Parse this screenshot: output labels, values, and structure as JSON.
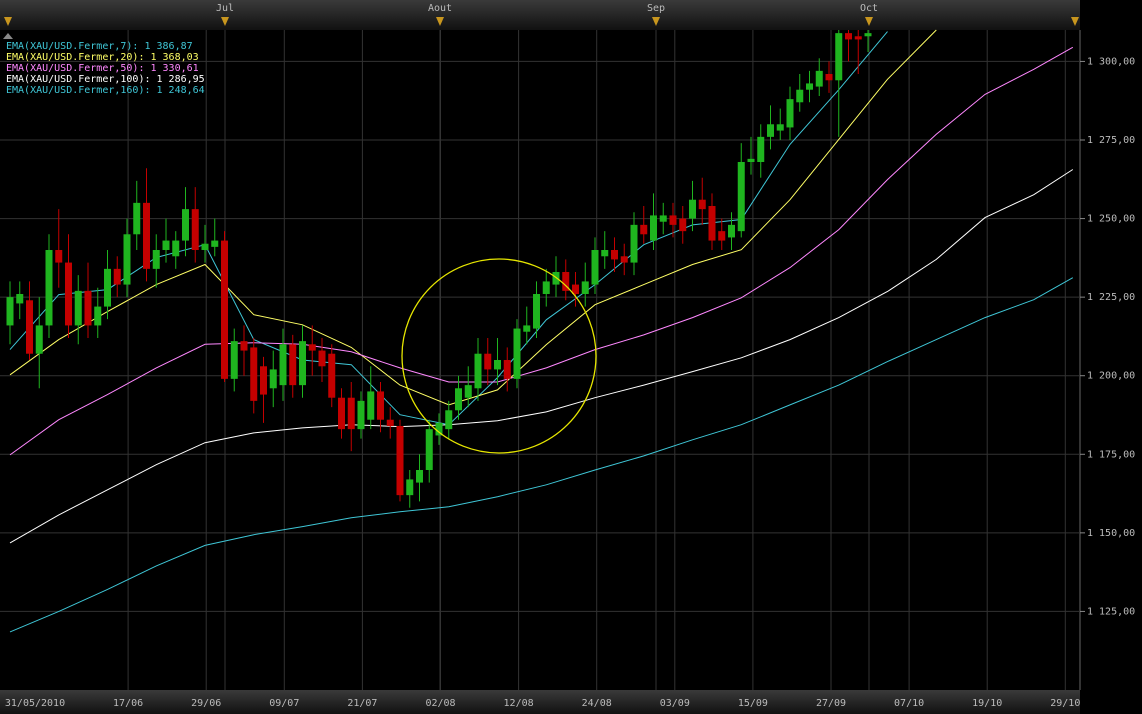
{
  "chart_data": {
    "type": "candlestick",
    "legend": [
      {
        "label": "EMA(XAU/USD.Fermer,7): 1 386,87",
        "color": "#3fc6d6"
      },
      {
        "label": "EMA(XAU/USD.Fermer,20): 1 368,03",
        "color": "#ffff66"
      },
      {
        "label": "EMA(XAU/USD.Fermer,50): 1 330,61",
        "color": "#ff88ff"
      },
      {
        "label": "EMA(XAU/USD.Fermer,100): 1 286,95",
        "color": "#ffffff"
      },
      {
        "label": "EMA(XAU/USD.Fermer,160): 1 248,64",
        "color": "#3fc6d6"
      }
    ],
    "months": [
      "Jul",
      "Aout",
      "Sep",
      "Oct"
    ],
    "categories": [
      "31/05/2010",
      "17/06",
      "29/06",
      "09/07",
      "21/07",
      "02/08",
      "12/08",
      "24/08",
      "03/09",
      "15/09",
      "27/09",
      "07/10",
      "19/10",
      "29/10"
    ],
    "ylim": [
      1100,
      1310
    ],
    "yticks": [
      {
        "value": 1125,
        "label": "1 125,00"
      },
      {
        "value": 1150,
        "label": "1 150,00"
      },
      {
        "value": 1175,
        "label": "1 175,00"
      },
      {
        "value": 1200,
        "label": "1 200,00"
      },
      {
        "value": 1225,
        "label": "1 225,00"
      },
      {
        "value": 1250,
        "label": "1 250,00"
      },
      {
        "value": 1275,
        "label": "1 275,00"
      },
      {
        "value": 1300,
        "label": "1 300,00"
      }
    ],
    "grid": true,
    "up_color": "#1fb51f",
    "down_color": "#c40000",
    "open": [
      1216,
      1223,
      1224,
      1207,
      1216,
      1240,
      1236,
      1216,
      1227,
      1216,
      1222,
      1234,
      1229,
      1245,
      1255,
      1234,
      1240,
      1238,
      1243,
      1253,
      1240,
      1241,
      1243,
      1199,
      1211,
      1209,
      1203,
      1196,
      1197,
      1210,
      1197,
      1210,
      1208,
      1207,
      1193,
      1193,
      1183,
      1186,
      1195,
      1186,
      1184,
      1162,
      1166,
      1170,
      1181,
      1183,
      1189,
      1193,
      1196,
      1207,
      1202,
      1205,
      1199,
      1214,
      1215,
      1226,
      1229,
      1233,
      1229,
      1226,
      1229,
      1238,
      1240,
      1238,
      1236,
      1248,
      1243,
      1249,
      1251,
      1250,
      1250,
      1256,
      1254,
      1246,
      1244,
      1246,
      1268,
      1268,
      1276,
      1278,
      1279,
      1287,
      1291,
      1292,
      1296,
      1294,
      1309,
      1308,
      1308
    ],
    "high": [
      1230,
      1230,
      1230,
      1225,
      1245,
      1253,
      1245,
      1232,
      1236,
      1228,
      1240,
      1238,
      1250,
      1262,
      1266,
      1245,
      1250,
      1246,
      1260,
      1260,
      1248,
      1250,
      1246,
      1215,
      1216,
      1212,
      1206,
      1208,
      1215,
      1213,
      1216,
      1216,
      1212,
      1210,
      1196,
      1198,
      1195,
      1203,
      1198,
      1190,
      1186,
      1170,
      1175,
      1186,
      1188,
      1192,
      1200,
      1203,
      1212,
      1212,
      1212,
      1209,
      1218,
      1222,
      1230,
      1234,
      1238,
      1237,
      1233,
      1236,
      1244,
      1246,
      1244,
      1242,
      1252,
      1254,
      1258,
      1255,
      1255,
      1254,
      1262,
      1263,
      1258,
      1250,
      1252,
      1274,
      1276,
      1280,
      1286,
      1285,
      1292,
      1296,
      1297,
      1301,
      1300,
      1310,
      1310,
      1310,
      1310
    ],
    "low": [
      1210,
      1218,
      1205,
      1196,
      1212,
      1228,
      1212,
      1210,
      1212,
      1212,
      1218,
      1225,
      1225,
      1240,
      1230,
      1228,
      1236,
      1234,
      1238,
      1236,
      1236,
      1238,
      1198,
      1195,
      1200,
      1188,
      1185,
      1190,
      1192,
      1193,
      1193,
      1200,
      1198,
      1190,
      1180,
      1176,
      1180,
      1183,
      1182,
      1180,
      1160,
      1158,
      1160,
      1166,
      1178,
      1180,
      1186,
      1190,
      1192,
      1197,
      1197,
      1195,
      1196,
      1210,
      1212,
      1222,
      1225,
      1224,
      1222,
      1222,
      1226,
      1234,
      1233,
      1232,
      1232,
      1242,
      1240,
      1245,
      1244,
      1242,
      1246,
      1248,
      1240,
      1240,
      1240,
      1244,
      1264,
      1263,
      1272,
      1275,
      1275,
      1284,
      1287,
      1289,
      1290,
      1276,
      1300,
      1296,
      1303
    ],
    "close": [
      1225,
      1226,
      1207,
      1216,
      1240,
      1236,
      1216,
      1227,
      1216,
      1222,
      1234,
      1229,
      1245,
      1255,
      1234,
      1240,
      1243,
      1243,
      1253,
      1240,
      1242,
      1243,
      1199,
      1211,
      1208,
      1192,
      1194,
      1202,
      1210,
      1197,
      1211,
      1208,
      1203,
      1193,
      1183,
      1183,
      1192,
      1195,
      1186,
      1184,
      1162,
      1167,
      1170,
      1183,
      1185,
      1189,
      1196,
      1197,
      1207,
      1202,
      1205,
      1199,
      1215,
      1216,
      1226,
      1230,
      1233,
      1227,
      1226,
      1230,
      1240,
      1240,
      1237,
      1236,
      1248,
      1245,
      1251,
      1251,
      1248,
      1246,
      1256,
      1253,
      1243,
      1243,
      1248,
      1268,
      1269,
      1276,
      1280,
      1280,
      1288,
      1291,
      1293,
      1297,
      1294,
      1309,
      1307,
      1307,
      1309
    ],
    "series": [
      {
        "name": "EMA 7",
        "color": "#3fc6d6",
        "x": [
          0,
          5,
          10,
          15,
          20,
          25,
          30,
          35,
          40,
          45,
          50,
          55,
          60,
          65,
          70,
          75,
          80,
          85,
          90
        ],
        "values": [
          1208.3,
          1225.8,
          1227.4,
          1237.6,
          1241.7,
          1211.5,
          1205,
          1203.5,
          1187.6,
          1184.4,
          1199.4,
          1217.8,
          1229,
          1241.7,
          1248,
          1249.7,
          1273.6,
          1291,
          1309.5
        ]
      },
      {
        "name": "EMA 20",
        "color": "#ffff66",
        "x": [
          0,
          5,
          10,
          15,
          20,
          25,
          30,
          35,
          40,
          45,
          50,
          55,
          60,
          65,
          70,
          75,
          80,
          85,
          90,
          95
        ],
        "values": [
          1200.3,
          1211.5,
          1220.4,
          1229,
          1235.4,
          1219.4,
          1216.2,
          1209,
          1197,
          1190.7,
          1195.5,
          1209.9,
          1222.6,
          1229,
          1235.4,
          1240.1,
          1256,
          1275.2,
          1294.3,
          1310
        ]
      },
      {
        "name": "EMA 50",
        "color": "#ff88ff",
        "x": [
          0,
          5,
          10,
          15,
          20,
          25,
          30,
          35,
          40,
          45,
          50,
          55,
          60,
          65,
          70,
          75,
          80,
          85,
          90,
          95,
          100,
          105,
          109
        ],
        "values": [
          1174.8,
          1186,
          1194,
          1202.5,
          1210,
          1210.5,
          1210,
          1207.6,
          1202.5,
          1198,
          1198,
          1202.5,
          1208.3,
          1213,
          1218.5,
          1224.8,
          1234.4,
          1246.5,
          1262.4,
          1276.8,
          1289.5,
          1297.5,
          1304.5
        ]
      },
      {
        "name": "EMA 100",
        "color": "#ffffff",
        "x": [
          0,
          5,
          10,
          15,
          20,
          25,
          30,
          35,
          40,
          45,
          50,
          55,
          60,
          65,
          70,
          75,
          80,
          85,
          90,
          95,
          100,
          105,
          109
        ],
        "values": [
          1146.8,
          1155.7,
          1163.7,
          1171.7,
          1178.7,
          1181.8,
          1183.4,
          1184.4,
          1183.8,
          1184.4,
          1185.7,
          1188.5,
          1193,
          1197,
          1201.3,
          1205.7,
          1211.5,
          1218.5,
          1226.8,
          1237,
          1250.3,
          1257.6,
          1265.6
        ]
      },
      {
        "name": "EMA 160",
        "color": "#3fc6d6",
        "x": [
          0,
          5,
          10,
          15,
          20,
          25,
          30,
          35,
          40,
          45,
          50,
          55,
          60,
          65,
          70,
          75,
          80,
          85,
          90,
          95,
          100,
          105,
          109
        ],
        "values": [
          1118.5,
          1125,
          1132,
          1139.5,
          1146,
          1149.4,
          1152,
          1154.8,
          1156.7,
          1158.3,
          1161.5,
          1165.3,
          1170,
          1174.5,
          1179.6,
          1184.4,
          1190.7,
          1197,
          1204.5,
          1211.5,
          1218.5,
          1224.2,
          1231.2
        ]
      }
    ]
  }
}
